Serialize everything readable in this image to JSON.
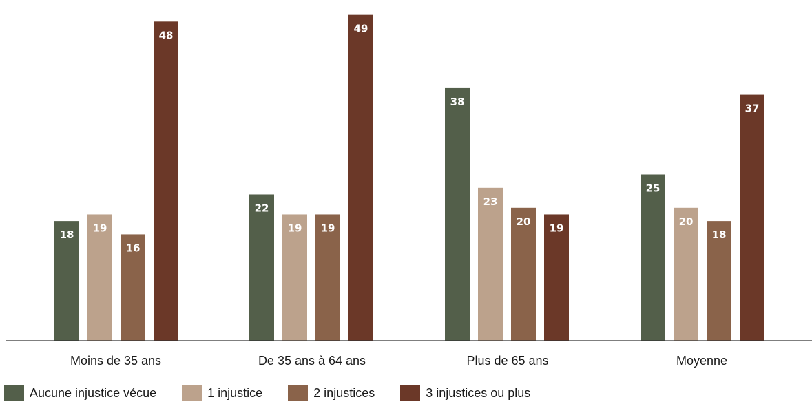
{
  "chart_data": {
    "type": "bar",
    "categories": [
      "Moins de 35 ans",
      "De 35 ans à 64 ans",
      "Plus de 65 ans",
      "Moyenne"
    ],
    "series": [
      {
        "name": "Aucune injustice vécue",
        "color": "#535f4a",
        "values": [
          18,
          22,
          38,
          25
        ]
      },
      {
        "name": "1 injustice",
        "color": "#bca28c",
        "values": [
          19,
          19,
          23,
          20
        ]
      },
      {
        "name": "2 injustices",
        "color": "#8a634a",
        "values": [
          16,
          19,
          20,
          18
        ]
      },
      {
        "name": "3 injustices ou plus",
        "color": "#6b3828",
        "values": [
          48,
          49,
          19,
          37
        ]
      }
    ],
    "title": "",
    "xlabel": "",
    "ylabel": "",
    "ylim": [
      0,
      50
    ],
    "grid": false,
    "legend_position": "bottom-left"
  }
}
